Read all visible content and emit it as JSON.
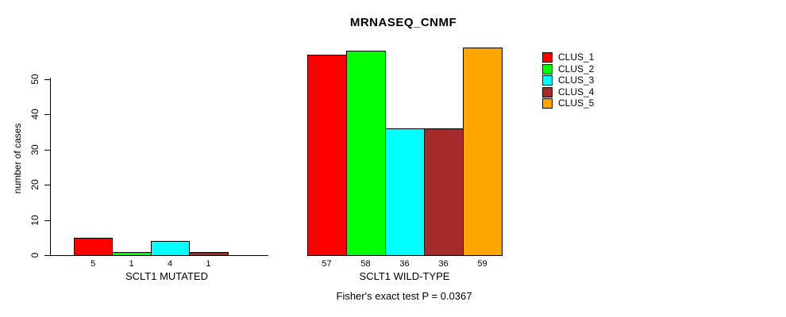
{
  "chart_data": {
    "type": "bar",
    "title": "MRNASEQ_CNMF",
    "ylabel": "number of cases",
    "xlabel": "",
    "yticks": [
      0,
      10,
      20,
      30,
      40,
      50
    ],
    "ylim": [
      0,
      59
    ],
    "grid": false,
    "legend_position": "right",
    "annotation": "Fisher's exact test P = 0.0367",
    "legend": [
      {
        "label": "CLUS_1",
        "color": "#FF0000"
      },
      {
        "label": "CLUS_2",
        "color": "#00FF00"
      },
      {
        "label": "CLUS_3",
        "color": "#00FFFF"
      },
      {
        "label": "CLUS_4",
        "color": "#A52A2A"
      },
      {
        "label": "CLUS_5",
        "color": "#FFA500"
      }
    ],
    "groups": [
      {
        "label": "SCLT1 MUTATED",
        "values": [
          5,
          1,
          4,
          1,
          0
        ],
        "bar_labels": [
          "5",
          "1",
          "4",
          "1",
          ""
        ]
      },
      {
        "label": "SCLT1 WILD-TYPE",
        "values": [
          57,
          58,
          36,
          36,
          59
        ],
        "bar_labels": [
          "57",
          "58",
          "36",
          "36",
          "59"
        ]
      }
    ]
  }
}
